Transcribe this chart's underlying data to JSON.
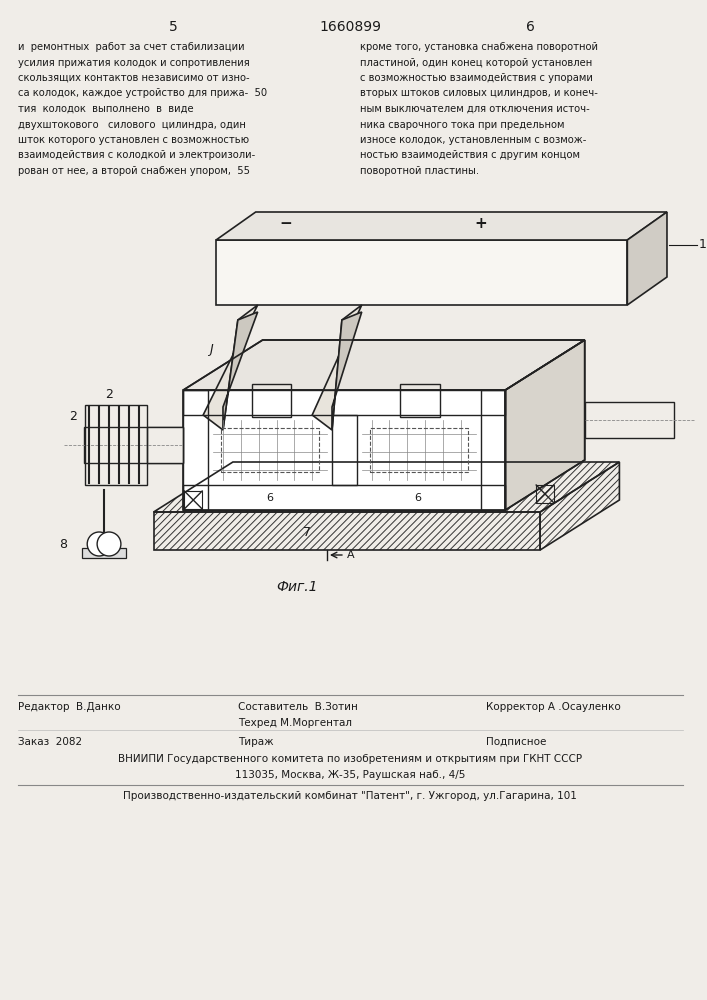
{
  "page_num_left": "5",
  "patent_num": "1660899",
  "page_num_right": "6",
  "left_col_text_lines": [
    "и  ремонтных  работ за счет стабилизации",
    "усилия прижатия колодок и сопротивления",
    "скользящих контактов независимо от изно-",
    "са колодок, каждое устройство для прижа-  50",
    "тия  колодок  выполнено  в  виде",
    "двухштокового   силового  цилиндра, один",
    "шток которого установлен с возможностью",
    "взаимодействия с колодкой и электроизоли-",
    "рован от нее, а второй снабжен упором,  55"
  ],
  "right_col_text_lines": [
    "кроме того, установка снабжена поворотной",
    "пластиной, один конец которой установлен",
    "с возможностью взаимодействия с упорами",
    "вторых штоков силовых цилиндров, и конеч-",
    "ным выключателем для отключения источ-",
    "ника сварочного тока при предельном",
    "износе колодок, установленным с возмож-",
    "ностью взаимодействия с другим концом",
    "поворотной пластины."
  ],
  "fig_caption": "Фиг.1",
  "footer_editor": "Редактор  В.Данко",
  "footer_composer": "Составитель  В.Зотин",
  "footer_corrector": "Корректор А .Осауленко",
  "footer_techred": "Техред М.Моргентал",
  "footer_order": "Заказ  2082",
  "footer_tirazh": "Тираж",
  "footer_podpisnoe": "Подписное",
  "footer_vniipи": "ВНИИПИ Государственного комитета по изобретениям и открытиям при ГКНТ СССР",
  "footer_address": "113035, Москва, Ж-35, Раушская наб., 4/5",
  "footer_factory": "Производственно-издательский комбинат \"Патент\", г. Ужгород, ул.Гагарина, 101",
  "bg_color": "#f0ede8",
  "text_color": "#1a1a1a",
  "line_color": "#222222",
  "hatch_color": "#333333"
}
